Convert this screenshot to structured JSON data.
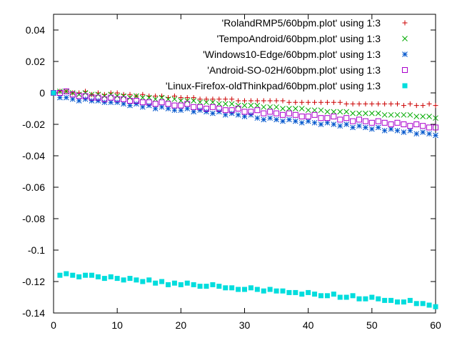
{
  "chart_data": {
    "type": "scatter",
    "title": "",
    "xlabel": "",
    "ylabel": "",
    "xlim": [
      0,
      60
    ],
    "ylim": [
      -0.14,
      0.05
    ],
    "xticks": [
      0,
      10,
      20,
      30,
      40,
      50,
      60
    ],
    "yticks": [
      0.04,
      0.02,
      0,
      -0.02,
      -0.04,
      -0.06,
      -0.08,
      -0.1,
      -0.12,
      -0.14
    ],
    "xtick_labels": [
      "0",
      "10",
      "20",
      "30",
      "40",
      "50",
      "60"
    ],
    "ytick_labels": [
      "0.04",
      "0.02",
      "0",
      "-0.02",
      "-0.04",
      "-0.06",
      "-0.08",
      "-0.1",
      "-0.12",
      "-0.14"
    ],
    "grid": false,
    "legend_position": "top-right",
    "series": [
      {
        "name": "'RolandRMP5/60bpm.plot' using 1:3",
        "marker": "plus",
        "color": "#cc0000",
        "x": [
          0,
          1,
          2,
          3,
          4,
          5,
          6,
          7,
          8,
          9,
          10,
          11,
          12,
          13,
          14,
          15,
          16,
          17,
          18,
          19,
          20,
          21,
          22,
          23,
          24,
          25,
          26,
          27,
          28,
          29,
          30,
          31,
          32,
          33,
          34,
          35,
          36,
          37,
          38,
          39,
          40,
          41,
          42,
          43,
          44,
          45,
          46,
          47,
          48,
          49,
          50,
          51,
          52,
          53,
          54,
          55,
          56,
          57,
          58,
          59,
          60
        ],
        "y": [
          0,
          0.001,
          0.001,
          0,
          0,
          0.001,
          -0.001,
          0,
          -0.001,
          0,
          0,
          -0.001,
          -0.001,
          -0.002,
          -0.001,
          -0.002,
          -0.002,
          -0.002,
          -0.003,
          -0.002,
          -0.003,
          -0.003,
          -0.003,
          -0.004,
          -0.004,
          -0.004,
          -0.004,
          -0.004,
          -0.004,
          -0.005,
          -0.005,
          -0.005,
          -0.005,
          -0.005,
          -0.005,
          -0.005,
          -0.005,
          -0.006,
          -0.006,
          -0.006,
          -0.006,
          -0.006,
          -0.006,
          -0.006,
          -0.006,
          -0.006,
          -0.007,
          -0.007,
          -0.007,
          -0.007,
          -0.007,
          -0.007,
          -0.007,
          -0.007,
          -0.007,
          -0.008,
          -0.007,
          -0.008,
          -0.008,
          -0.007,
          -0.008
        ]
      },
      {
        "name": "'TempoAndroid/60bpm.plot' using 1:3",
        "marker": "cross",
        "color": "#00aa00",
        "x": [
          0,
          1,
          2,
          3,
          4,
          5,
          6,
          7,
          8,
          9,
          10,
          11,
          12,
          13,
          14,
          15,
          16,
          17,
          18,
          19,
          20,
          21,
          22,
          23,
          24,
          25,
          26,
          27,
          28,
          29,
          30,
          31,
          32,
          33,
          34,
          35,
          36,
          37,
          38,
          39,
          40,
          41,
          42,
          43,
          44,
          45,
          46,
          47,
          48,
          49,
          50,
          51,
          52,
          53,
          54,
          55,
          56,
          57,
          58,
          59,
          60
        ],
        "y": [
          0,
          0.001,
          0.001,
          0,
          -0.001,
          0,
          -0.001,
          -0.001,
          -0.002,
          -0.001,
          -0.002,
          -0.002,
          -0.003,
          -0.002,
          -0.003,
          -0.003,
          -0.004,
          -0.003,
          -0.004,
          -0.004,
          -0.005,
          -0.005,
          -0.005,
          -0.006,
          -0.006,
          -0.006,
          -0.007,
          -0.007,
          -0.007,
          -0.008,
          -0.008,
          -0.008,
          -0.008,
          -0.009,
          -0.009,
          -0.009,
          -0.01,
          -0.01,
          -0.01,
          -0.01,
          -0.011,
          -0.011,
          -0.011,
          -0.012,
          -0.012,
          -0.012,
          -0.012,
          -0.013,
          -0.013,
          -0.013,
          -0.013,
          -0.013,
          -0.014,
          -0.014,
          -0.014,
          -0.014,
          -0.014,
          -0.015,
          -0.015,
          -0.015,
          -0.016
        ]
      },
      {
        "name": "'Windows10-Edge/60bpm.plot' using 1:3",
        "marker": "star",
        "color": "#0055cc",
        "x": [
          0,
          1,
          2,
          3,
          4,
          5,
          6,
          7,
          8,
          9,
          10,
          11,
          12,
          13,
          14,
          15,
          16,
          17,
          18,
          19,
          20,
          21,
          22,
          23,
          24,
          25,
          26,
          27,
          28,
          29,
          30,
          31,
          32,
          33,
          34,
          35,
          36,
          37,
          38,
          39,
          40,
          41,
          42,
          43,
          44,
          45,
          46,
          47,
          48,
          49,
          50,
          51,
          52,
          53,
          54,
          55,
          56,
          57,
          58,
          59,
          60
        ],
        "y": [
          0,
          -0.003,
          -0.003,
          -0.004,
          -0.005,
          -0.004,
          -0.005,
          -0.005,
          -0.006,
          -0.006,
          -0.006,
          -0.007,
          -0.008,
          -0.007,
          -0.009,
          -0.008,
          -0.01,
          -0.009,
          -0.01,
          -0.011,
          -0.011,
          -0.01,
          -0.012,
          -0.011,
          -0.012,
          -0.013,
          -0.012,
          -0.014,
          -0.013,
          -0.014,
          -0.015,
          -0.014,
          -0.016,
          -0.017,
          -0.016,
          -0.017,
          -0.018,
          -0.017,
          -0.018,
          -0.019,
          -0.018,
          -0.019,
          -0.02,
          -0.019,
          -0.02,
          -0.021,
          -0.02,
          -0.022,
          -0.021,
          -0.022,
          -0.023,
          -0.022,
          -0.024,
          -0.023,
          -0.024,
          -0.025,
          -0.024,
          -0.026,
          -0.025,
          -0.026,
          -0.027
        ]
      },
      {
        "name": "'Android-SO-02H/60bpm.plot' using 1:3",
        "marker": "open-square",
        "color": "#aa00cc",
        "x": [
          0,
          1,
          2,
          3,
          4,
          5,
          6,
          7,
          8,
          9,
          10,
          11,
          12,
          13,
          14,
          15,
          16,
          17,
          18,
          19,
          20,
          21,
          22,
          23,
          24,
          25,
          26,
          27,
          28,
          29,
          30,
          31,
          32,
          33,
          34,
          35,
          36,
          37,
          38,
          39,
          40,
          41,
          42,
          43,
          44,
          45,
          46,
          47,
          48,
          49,
          50,
          51,
          52,
          53,
          54,
          55,
          56,
          57,
          58,
          59,
          60
        ],
        "y": [
          0,
          0,
          0.001,
          -0.001,
          -0.002,
          -0.002,
          -0.003,
          -0.003,
          -0.004,
          -0.003,
          -0.004,
          -0.004,
          -0.005,
          -0.005,
          -0.006,
          -0.006,
          -0.007,
          -0.006,
          -0.007,
          -0.008,
          -0.008,
          -0.007,
          -0.009,
          -0.009,
          -0.01,
          -0.009,
          -0.01,
          -0.011,
          -0.011,
          -0.01,
          -0.012,
          -0.012,
          -0.011,
          -0.013,
          -0.012,
          -0.013,
          -0.014,
          -0.013,
          -0.014,
          -0.015,
          -0.015,
          -0.014,
          -0.016,
          -0.016,
          -0.015,
          -0.017,
          -0.016,
          -0.018,
          -0.017,
          -0.018,
          -0.019,
          -0.018,
          -0.019,
          -0.02,
          -0.019,
          -0.02,
          -0.021,
          -0.02,
          -0.021,
          -0.022,
          -0.022
        ]
      },
      {
        "name": "'Linux-Firefox-oldThinkpad/60bpm.plot' using 1:3",
        "marker": "filled-square",
        "color": "#00dddd",
        "x": [
          0,
          1,
          2,
          3,
          4,
          5,
          6,
          7,
          8,
          9,
          10,
          11,
          12,
          13,
          14,
          15,
          16,
          17,
          18,
          19,
          20,
          21,
          22,
          23,
          24,
          25,
          26,
          27,
          28,
          29,
          30,
          31,
          32,
          33,
          34,
          35,
          36,
          37,
          38,
          39,
          40,
          41,
          42,
          43,
          44,
          45,
          46,
          47,
          48,
          49,
          50,
          51,
          52,
          53,
          54,
          55,
          56,
          57,
          58,
          59,
          60
        ],
        "y": [
          0,
          -0.116,
          -0.115,
          -0.116,
          -0.117,
          -0.116,
          -0.116,
          -0.117,
          -0.118,
          -0.117,
          -0.118,
          -0.119,
          -0.118,
          -0.119,
          -0.12,
          -0.119,
          -0.121,
          -0.12,
          -0.122,
          -0.121,
          -0.122,
          -0.121,
          -0.122,
          -0.123,
          -0.123,
          -0.122,
          -0.123,
          -0.124,
          -0.124,
          -0.125,
          -0.125,
          -0.124,
          -0.125,
          -0.126,
          -0.125,
          -0.126,
          -0.126,
          -0.127,
          -0.127,
          -0.128,
          -0.127,
          -0.128,
          -0.129,
          -0.129,
          -0.128,
          -0.13,
          -0.13,
          -0.129,
          -0.131,
          -0.131,
          -0.13,
          -0.131,
          -0.132,
          -0.132,
          -0.133,
          -0.133,
          -0.132,
          -0.134,
          -0.134,
          -0.135,
          -0.136
        ]
      }
    ]
  }
}
